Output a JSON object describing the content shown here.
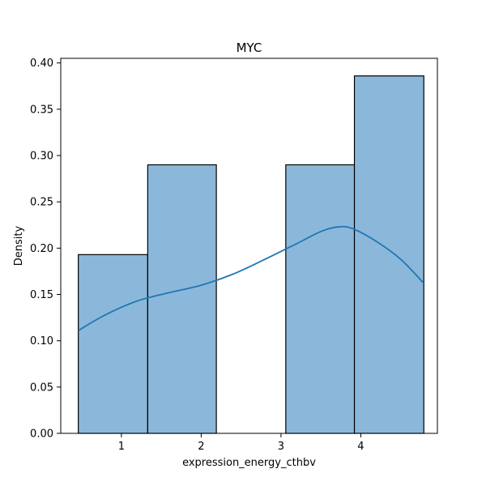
{
  "chart_data": {
    "type": "bar",
    "title": "MYC",
    "xlabel": "expression_energy_cthbv",
    "ylabel": "Density",
    "xlim": [
      0.24,
      4.96
    ],
    "ylim": [
      0,
      0.405
    ],
    "x_ticks": [
      1,
      2,
      3,
      4
    ],
    "y_ticks": [
      0.0,
      0.05,
      0.1,
      0.15,
      0.2,
      0.25,
      0.3,
      0.35,
      0.4
    ],
    "bins": [
      {
        "x0": 0.46,
        "x1": 1.33,
        "density": 0.193
      },
      {
        "x0": 1.33,
        "x1": 2.19,
        "density": 0.29
      },
      {
        "x0": 2.19,
        "x1": 3.06,
        "density": 0.0
      },
      {
        "x0": 3.06,
        "x1": 3.92,
        "density": 0.29
      },
      {
        "x0": 3.92,
        "x1": 4.79,
        "density": 0.386
      }
    ],
    "kde": {
      "x": [
        0.46,
        0.8,
        1.2,
        1.6,
        2.0,
        2.4,
        2.8,
        3.2,
        3.5,
        3.72,
        3.9,
        4.2,
        4.5,
        4.79
      ],
      "y": [
        0.111,
        0.128,
        0.143,
        0.152,
        0.16,
        0.172,
        0.188,
        0.205,
        0.218,
        0.223,
        0.221,
        0.207,
        0.188,
        0.162
      ]
    },
    "colors": {
      "bar_fill": "#8bb8da",
      "bar_edge": "#000000",
      "kde_line": "#1f77b4"
    },
    "grid": false,
    "legend": "none"
  }
}
